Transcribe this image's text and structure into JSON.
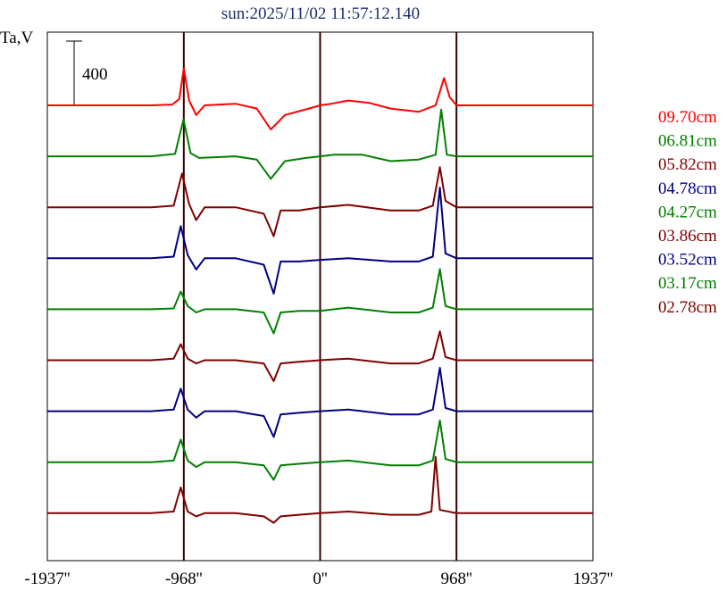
{
  "chart_data": {
    "type": "line",
    "title": "sun:2025/11/02 11:57:12.140",
    "ylabel": "Ta,V",
    "xlim": [
      -1937,
      1937
    ],
    "x_ticks": [
      {
        "value": -1937,
        "label": "-1937''"
      },
      {
        "value": -968,
        "label": "-968''"
      },
      {
        "value": 0,
        "label": "0''"
      },
      {
        "value": 968,
        "label": "968''"
      },
      {
        "value": 1937,
        "label": "1937''"
      }
    ],
    "vertical_lines": [
      -968,
      0,
      968
    ],
    "scale_bar": {
      "value": 400,
      "label": "400"
    },
    "series": [
      {
        "name": "09.70cm",
        "color": "#ff0000",
        "baseline": 0,
        "points": [
          [
            -1937,
            0
          ],
          [
            -1200,
            0
          ],
          [
            -1050,
            5
          ],
          [
            -1000,
            40
          ],
          [
            -968,
            230
          ],
          [
            -930,
            30
          ],
          [
            -880,
            -60
          ],
          [
            -820,
            0
          ],
          [
            -600,
            10
          ],
          [
            -450,
            -20
          ],
          [
            -350,
            -150
          ],
          [
            -250,
            -60
          ],
          [
            -80,
            -20
          ],
          [
            0,
            0
          ],
          [
            80,
            10
          ],
          [
            200,
            30
          ],
          [
            350,
            15
          ],
          [
            500,
            -20
          ],
          [
            700,
            -40
          ],
          [
            820,
            0
          ],
          [
            880,
            170
          ],
          [
            920,
            50
          ],
          [
            968,
            0
          ],
          [
            1200,
            0
          ],
          [
            1937,
            0
          ]
        ]
      },
      {
        "name": "06.81cm",
        "color": "#008000",
        "baseline": 0,
        "points": [
          [
            -1937,
            0
          ],
          [
            -1200,
            0
          ],
          [
            -1030,
            15
          ],
          [
            -970,
            230
          ],
          [
            -920,
            20
          ],
          [
            -860,
            -10
          ],
          [
            -600,
            0
          ],
          [
            -450,
            -20
          ],
          [
            -350,
            -140
          ],
          [
            -250,
            -30
          ],
          [
            -100,
            -10
          ],
          [
            0,
            0
          ],
          [
            100,
            10
          ],
          [
            300,
            10
          ],
          [
            500,
            -30
          ],
          [
            700,
            -20
          ],
          [
            820,
            10
          ],
          [
            860,
            290
          ],
          [
            900,
            10
          ],
          [
            968,
            0
          ],
          [
            1200,
            0
          ],
          [
            1937,
            0
          ]
        ]
      },
      {
        "name": "05.82cm",
        "color": "#800000",
        "baseline": 0,
        "points": [
          [
            -1937,
            0
          ],
          [
            -1200,
            0
          ],
          [
            -1040,
            10
          ],
          [
            -980,
            210
          ],
          [
            -930,
            20
          ],
          [
            -880,
            -80
          ],
          [
            -820,
            0
          ],
          [
            -600,
            0
          ],
          [
            -400,
            -40
          ],
          [
            -330,
            -180
          ],
          [
            -280,
            -20
          ],
          [
            -150,
            -20
          ],
          [
            0,
            0
          ],
          [
            200,
            15
          ],
          [
            500,
            -20
          ],
          [
            700,
            -20
          ],
          [
            800,
            10
          ],
          [
            850,
            250
          ],
          [
            890,
            40
          ],
          [
            968,
            0
          ],
          [
            1200,
            0
          ],
          [
            1937,
            0
          ]
        ]
      },
      {
        "name": "04.78cm",
        "color": "#000080",
        "baseline": 0,
        "points": [
          [
            -1937,
            0
          ],
          [
            -1200,
            0
          ],
          [
            -1040,
            10
          ],
          [
            -990,
            200
          ],
          [
            -940,
            20
          ],
          [
            -880,
            -70
          ],
          [
            -820,
            0
          ],
          [
            -600,
            0
          ],
          [
            -400,
            -40
          ],
          [
            -330,
            -220
          ],
          [
            -280,
            -20
          ],
          [
            -150,
            -20
          ],
          [
            0,
            -10
          ],
          [
            200,
            0
          ],
          [
            500,
            -20
          ],
          [
            700,
            -20
          ],
          [
            800,
            10
          ],
          [
            850,
            440
          ],
          [
            890,
            30
          ],
          [
            968,
            0
          ],
          [
            1200,
            0
          ],
          [
            1937,
            0
          ]
        ]
      },
      {
        "name": "04.27cm",
        "color": "#008000",
        "baseline": 0,
        "points": [
          [
            -1937,
            0
          ],
          [
            -1200,
            0
          ],
          [
            -1040,
            5
          ],
          [
            -990,
            110
          ],
          [
            -940,
            20
          ],
          [
            -880,
            -20
          ],
          [
            -820,
            0
          ],
          [
            -600,
            0
          ],
          [
            -400,
            -20
          ],
          [
            -330,
            -150
          ],
          [
            -280,
            -20
          ],
          [
            -150,
            -10
          ],
          [
            0,
            -10
          ],
          [
            200,
            10
          ],
          [
            500,
            -20
          ],
          [
            700,
            -20
          ],
          [
            800,
            10
          ],
          [
            850,
            250
          ],
          [
            890,
            20
          ],
          [
            968,
            0
          ],
          [
            1200,
            0
          ],
          [
            1937,
            0
          ]
        ]
      },
      {
        "name": "03.86cm",
        "color": "#800000",
        "baseline": 0,
        "points": [
          [
            -1937,
            0
          ],
          [
            -1200,
            0
          ],
          [
            -1040,
            10
          ],
          [
            -990,
            100
          ],
          [
            -940,
            10
          ],
          [
            -880,
            -20
          ],
          [
            -820,
            0
          ],
          [
            -600,
            0
          ],
          [
            -400,
            -20
          ],
          [
            -330,
            -130
          ],
          [
            -280,
            -20
          ],
          [
            -150,
            -10
          ],
          [
            0,
            0
          ],
          [
            200,
            10
          ],
          [
            500,
            -20
          ],
          [
            700,
            -20
          ],
          [
            800,
            10
          ],
          [
            850,
            180
          ],
          [
            890,
            20
          ],
          [
            968,
            0
          ],
          [
            1200,
            0
          ],
          [
            1937,
            0
          ]
        ]
      },
      {
        "name": "03.52cm",
        "color": "#000080",
        "baseline": 0,
        "points": [
          [
            -1937,
            0
          ],
          [
            -1200,
            0
          ],
          [
            -1040,
            10
          ],
          [
            -990,
            140
          ],
          [
            -940,
            10
          ],
          [
            -880,
            -40
          ],
          [
            -820,
            0
          ],
          [
            -600,
            0
          ],
          [
            -400,
            -30
          ],
          [
            -330,
            -160
          ],
          [
            -280,
            -20
          ],
          [
            -150,
            -10
          ],
          [
            0,
            0
          ],
          [
            200,
            10
          ],
          [
            500,
            -20
          ],
          [
            700,
            -20
          ],
          [
            800,
            10
          ],
          [
            850,
            270
          ],
          [
            890,
            20
          ],
          [
            968,
            0
          ],
          [
            1200,
            0
          ],
          [
            1937,
            0
          ]
        ]
      },
      {
        "name": "03.17cm",
        "color": "#008000",
        "baseline": 0,
        "points": [
          [
            -1937,
            0
          ],
          [
            -1200,
            0
          ],
          [
            -1040,
            10
          ],
          [
            -990,
            140
          ],
          [
            -940,
            10
          ],
          [
            -880,
            -30
          ],
          [
            -820,
            0
          ],
          [
            -600,
            0
          ],
          [
            -400,
            -20
          ],
          [
            -330,
            -110
          ],
          [
            -280,
            -20
          ],
          [
            -150,
            -10
          ],
          [
            0,
            0
          ],
          [
            200,
            10
          ],
          [
            500,
            -20
          ],
          [
            700,
            -20
          ],
          [
            800,
            10
          ],
          [
            850,
            260
          ],
          [
            890,
            20
          ],
          [
            968,
            0
          ],
          [
            1200,
            0
          ],
          [
            1937,
            0
          ]
        ]
      },
      {
        "name": "02.78cm",
        "color": "#800000",
        "baseline": 0,
        "points": [
          [
            -1937,
            0
          ],
          [
            -1200,
            0
          ],
          [
            -1040,
            10
          ],
          [
            -990,
            160
          ],
          [
            -940,
            10
          ],
          [
            -880,
            -20
          ],
          [
            -820,
            0
          ],
          [
            -600,
            0
          ],
          [
            -400,
            -20
          ],
          [
            -330,
            -60
          ],
          [
            -280,
            -20
          ],
          [
            -150,
            -10
          ],
          [
            0,
            0
          ],
          [
            200,
            10
          ],
          [
            500,
            -10
          ],
          [
            700,
            -10
          ],
          [
            790,
            10
          ],
          [
            820,
            350
          ],
          [
            850,
            20
          ],
          [
            968,
            0
          ],
          [
            1200,
            0
          ],
          [
            1937,
            0
          ]
        ]
      }
    ]
  }
}
